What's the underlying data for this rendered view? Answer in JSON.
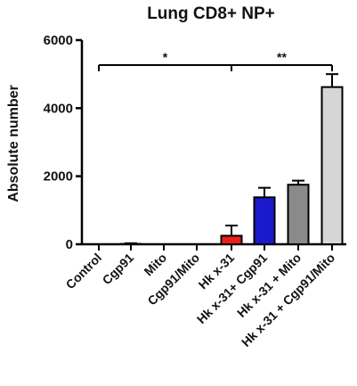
{
  "chart_data": {
    "type": "bar",
    "title": "Lung CD8+ NP+",
    "xlabel": "",
    "ylabel": "Absolute number",
    "ylim": [
      0,
      6000
    ],
    "yticks": [
      0,
      2000,
      4000,
      6000
    ],
    "categories": [
      "Control",
      "Cgp91",
      "Mito",
      "Cgp91/Mito",
      "Hk x-31",
      "Hk x-31+ Cgp91",
      "Hk x-31 + Mito",
      "Hk x-31 + Cgp91/Mito"
    ],
    "values": [
      0,
      10,
      0,
      0,
      250,
      1380,
      1750,
      4620
    ],
    "errors": [
      0,
      20,
      0,
      0,
      300,
      280,
      120,
      380
    ],
    "bar_colors": [
      "#ffffff",
      "#ffffff",
      "#ffffff",
      "#ffffff",
      "#e8201c",
      "#1a1acc",
      "#8a8a8a",
      "#d6d6d6"
    ],
    "significance": [
      {
        "label": "*",
        "from": "Control",
        "to": "Hk x-31"
      },
      {
        "label": "**",
        "from": "Hk x-31",
        "to": "Hk x-31 + Cgp91/Mito"
      }
    ]
  }
}
